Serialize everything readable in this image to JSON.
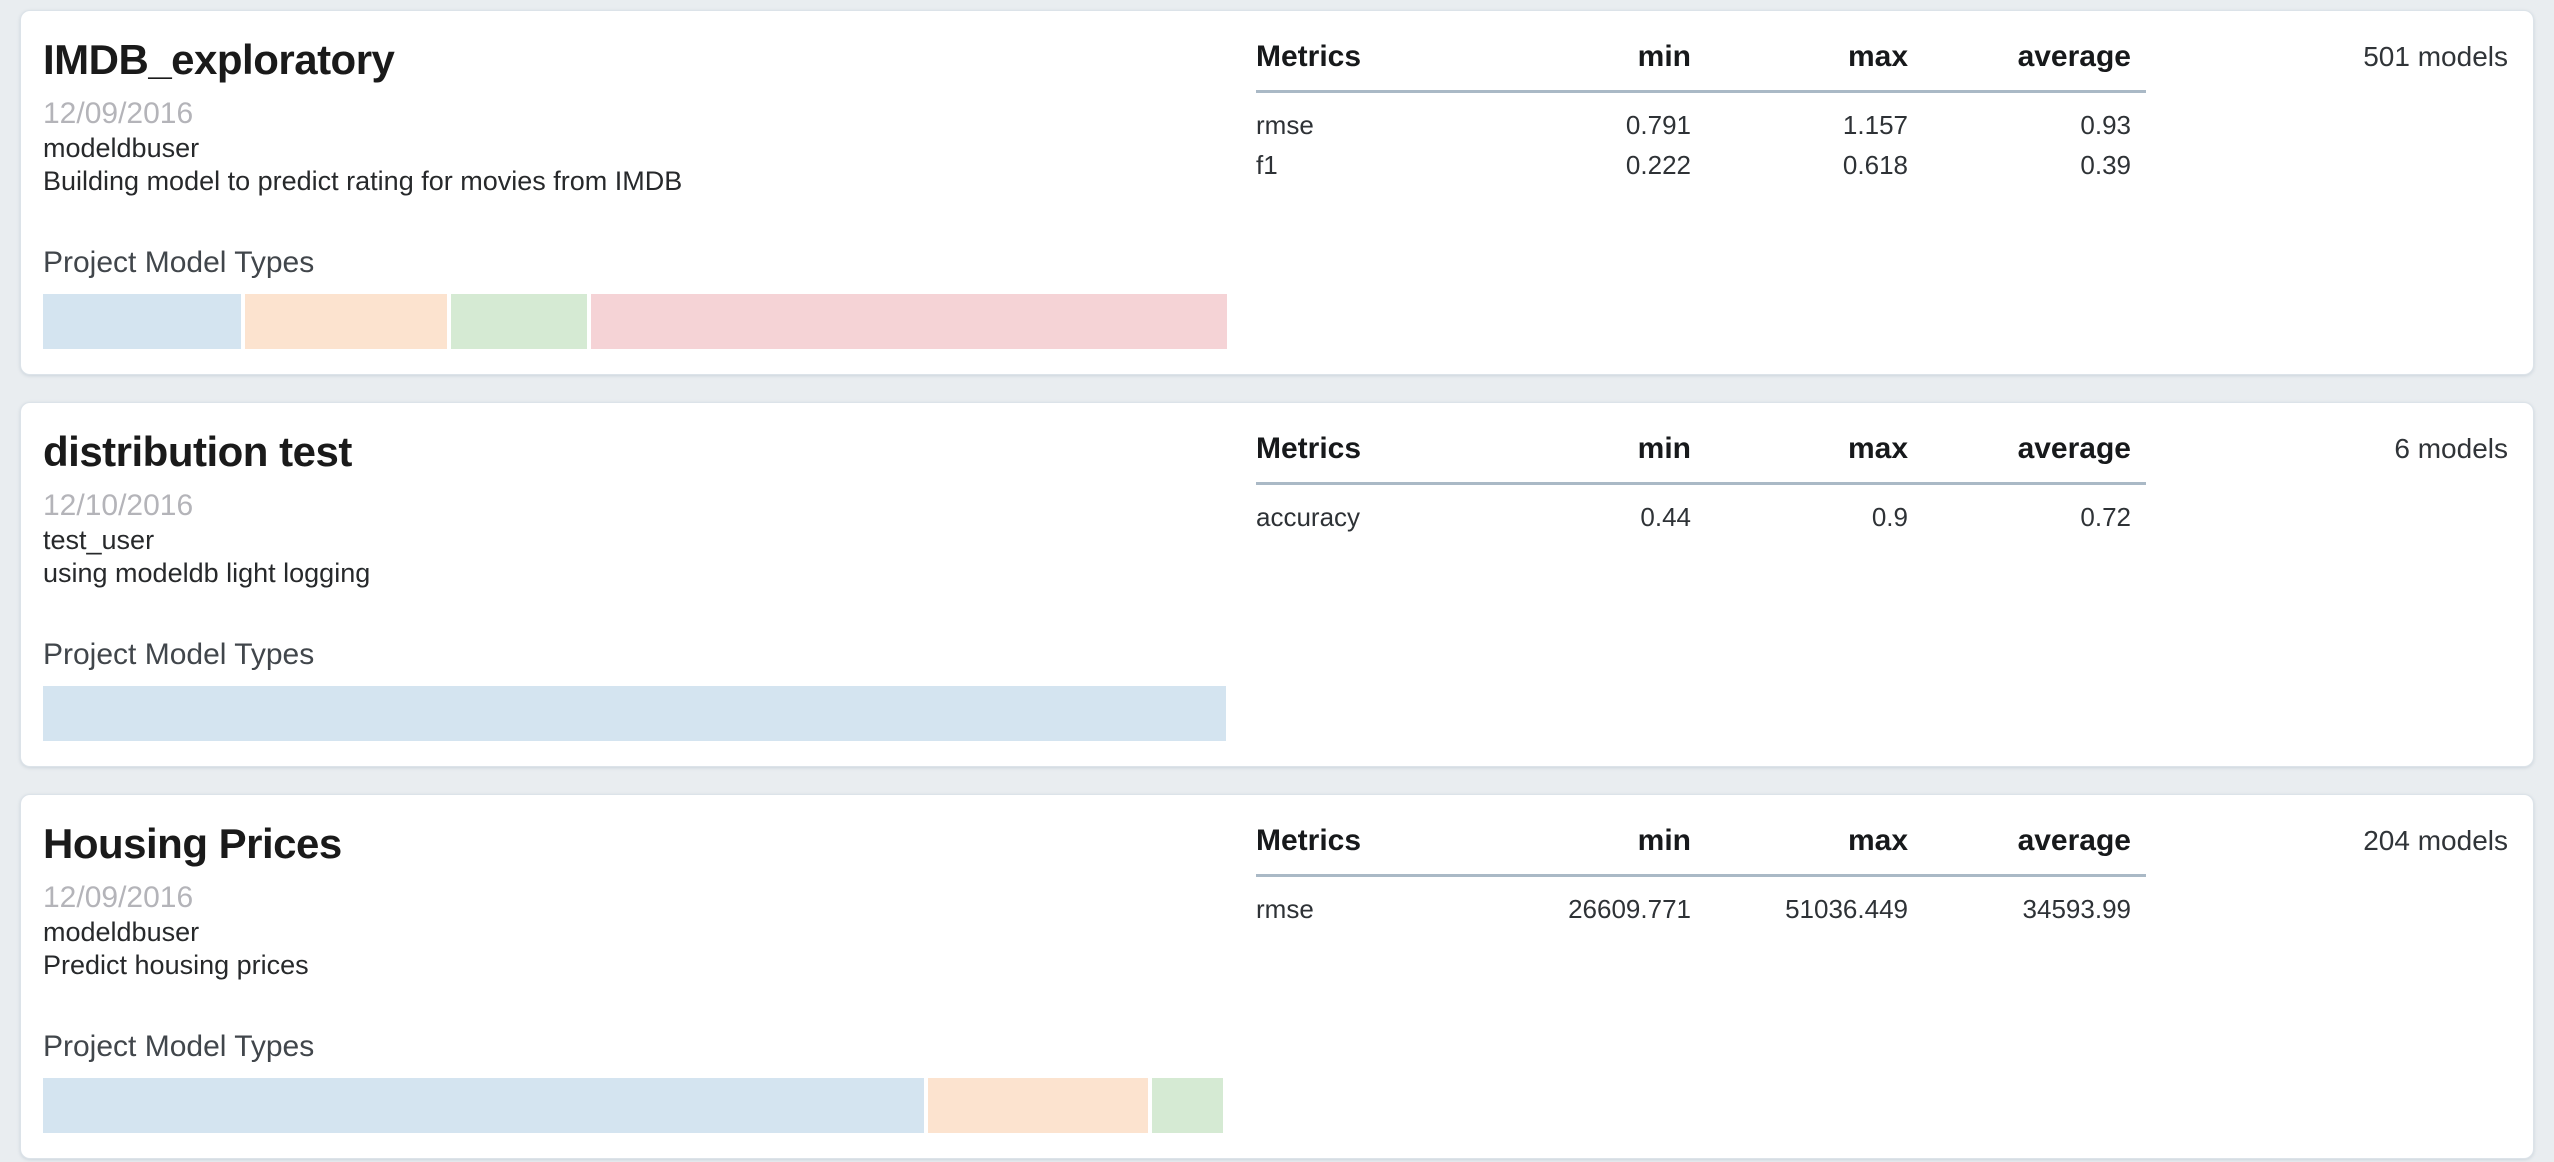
{
  "page": {
    "background": "#e9edf0",
    "card_background": "#ffffff"
  },
  "labels": {
    "model_types_heading": "Project Model Types"
  },
  "table_headers": {
    "metrics": "Metrics",
    "min": "min",
    "max": "max",
    "average": "average"
  },
  "colors": {
    "bar_blue": "#d4e4f0",
    "bar_orange": "#fce3cf",
    "bar_green": "#d5ead3",
    "bar_pink": "#f5d3d6",
    "header_underline": "#aab9c6",
    "date_text": "#b4b4b9"
  },
  "projects": [
    {
      "title": "IMDB_exploratory",
      "date": "12/09/2016",
      "author": "modeldbuser",
      "description": "Building model to predict rating for movies from IMDB",
      "models_count": "501 models",
      "metrics": [
        {
          "name": "rmse",
          "min": "0.791",
          "max": "1.157",
          "average": "0.93"
        },
        {
          "name": "f1",
          "min": "0.222",
          "max": "0.618",
          "average": "0.39"
        }
      ],
      "model_type_bars": [
        {
          "color_key": "blue",
          "width_pct": 16.7
        },
        {
          "color_key": "orange",
          "width_pct": 17.1
        },
        {
          "color_key": "green",
          "width_pct": 11.5
        },
        {
          "color_key": "pink",
          "width_pct": 53.8
        }
      ]
    },
    {
      "title": "distribution test",
      "date": "12/10/2016",
      "author": "test_user",
      "description": "using modeldb light logging",
      "models_count": "6 models",
      "metrics": [
        {
          "name": "accuracy",
          "min": "0.44",
          "max": "0.9",
          "average": "0.72"
        }
      ],
      "model_type_bars": [
        {
          "color_key": "blue",
          "width_pct": 100
        }
      ]
    },
    {
      "title": "Housing Prices",
      "date": "12/09/2016",
      "author": "modeldbuser",
      "description": "Predict housing prices",
      "models_count": "204 models",
      "metrics": [
        {
          "name": "rmse",
          "min": "26609.771",
          "max": "51036.449",
          "average": "34593.99"
        }
      ],
      "model_type_bars": [
        {
          "color_key": "blue",
          "width_pct": 74.5
        },
        {
          "color_key": "orange",
          "width_pct": 18.6
        },
        {
          "color_key": "green",
          "width_pct": 6.0
        }
      ]
    }
  ]
}
